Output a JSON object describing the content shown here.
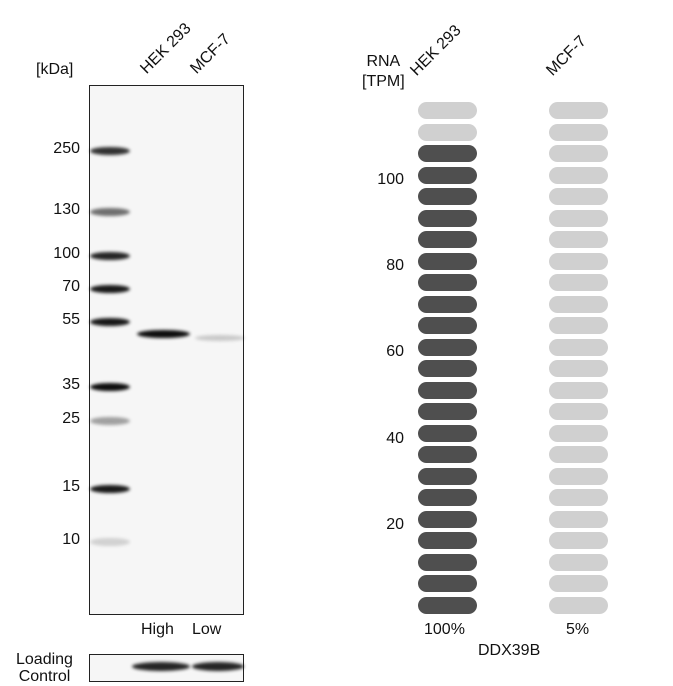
{
  "blot": {
    "unit_label": "[kDa]",
    "lanes": [
      "HEK 293",
      "MCF-7"
    ],
    "markers": [
      {
        "label": "250",
        "kda": 250
      },
      {
        "label": "130",
        "kda": 130
      },
      {
        "label": "100",
        "kda": 100
      },
      {
        "label": "70",
        "kda": 70
      },
      {
        "label": "55",
        "kda": 55
      },
      {
        "label": "35",
        "kda": 35
      },
      {
        "label": "25",
        "kda": 25
      },
      {
        "label": "15",
        "kda": 15
      },
      {
        "label": "10",
        "kda": 10
      }
    ],
    "marker_intensity": [
      0.8,
      0.55,
      0.85,
      0.9,
      0.9,
      0.95,
      0.35,
      0.9,
      0.15
    ],
    "lane_band_intensity": [
      0.95,
      0.18
    ],
    "lane_levels": [
      "High",
      "Low"
    ],
    "loading_control_label": [
      "Loading",
      "Control"
    ]
  },
  "chart_data": {
    "type": "bar",
    "ylabel": [
      "RNA",
      "[TPM]"
    ],
    "categories": [
      "HEK 293",
      "MCF-7"
    ],
    "values": [
      110,
      6
    ],
    "percent_labels": [
      "100%",
      "5%"
    ],
    "yticks": [
      20,
      40,
      60,
      80,
      100
    ],
    "ylim": [
      0,
      120
    ],
    "gene": "DDX39B",
    "colors": {
      "filled": "#4f4f4f",
      "empty": "#d0d0d0"
    }
  }
}
